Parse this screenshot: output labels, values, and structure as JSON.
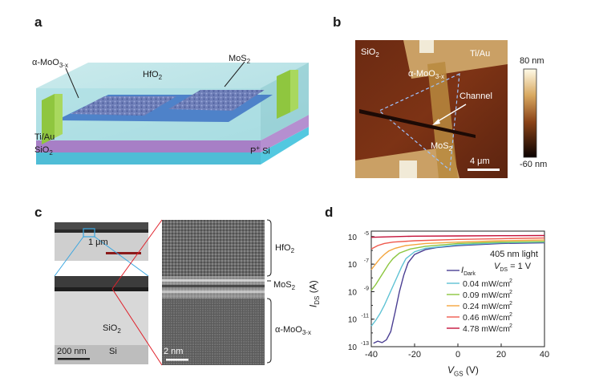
{
  "panels": {
    "a": {
      "letter": "a",
      "labels": {
        "moo3": "α-MoO",
        "moo3_sub": "3-x",
        "hfo2": "HfO",
        "hfo2_sub": "2",
        "mos2": "MoS",
        "mos2_sub": "2",
        "tiau": "Ti/Au",
        "sio2": "SiO",
        "sio2_sub": "2",
        "psi_p": "P",
        "psi_sup": "+",
        "psi_si": " Si"
      }
    },
    "b": {
      "letter": "b",
      "labels": {
        "sio2": "SiO",
        "sio2_sub": "2",
        "tiau": "Ti/Au",
        "moo3": "α-MoO",
        "moo3_sub": "3-x",
        "channel": "Channel",
        "mos2": "MoS",
        "mos2_sub": "2",
        "scale": "4 μm"
      },
      "colorbar": {
        "max": "80 nm",
        "min": "-60 nm"
      }
    },
    "c": {
      "letter": "c",
      "labels": {
        "scale_1um": "1 μm",
        "sio2": "SiO",
        "sio2_sub": "2",
        "si": "Si",
        "scale_200nm": "200 nm",
        "scale_2nm": "2 nm",
        "hfo2": "HfO",
        "hfo2_sub": "2",
        "mos2": "MoS",
        "mos2_sub": "2",
        "moo3": "α-MoO",
        "moo3_sub": "3-x"
      }
    },
    "d": {
      "letter": "d",
      "annotation": "405 nm light",
      "vds_label": "V",
      "vds_sub": "DS",
      "vds_value": " = 1 V",
      "legend_dark_i": "I",
      "legend_dark_sub": "Dark"
    }
  },
  "chart_data": {
    "type": "line",
    "xlabel": "V",
    "xlabel_sub": "GS",
    "xlabel_unit": " (V)",
    "ylabel": "I",
    "ylabel_sub": "DS",
    "ylabel_unit": " (A)",
    "xlim": [
      -40,
      40
    ],
    "ylim_exp": [
      -13,
      -4.6
    ],
    "yscale": "log",
    "x_ticks": [
      "-40",
      "-20",
      "0",
      "20",
      "40"
    ],
    "y_ticks": [
      {
        "base": "10",
        "exp": "-5",
        "value": -5
      },
      {
        "base": "10",
        "exp": "-7",
        "value": -7
      },
      {
        "base": "10",
        "exp": "-9",
        "value": -9
      },
      {
        "base": "10",
        "exp": "-11",
        "value": -11
      },
      {
        "base": "10",
        "exp": "-13",
        "value": -13
      }
    ],
    "series": [
      {
        "name": "Dark",
        "color": "#4b3f93",
        "points": [
          [
            -39,
            -12.75
          ],
          [
            -37,
            -12.6
          ],
          [
            -35,
            -12.7
          ],
          [
            -33,
            -12.5
          ],
          [
            -31,
            -11.9
          ],
          [
            -29,
            -10.5
          ],
          [
            -27,
            -9.0
          ],
          [
            -25,
            -7.8
          ],
          [
            -23,
            -6.9
          ],
          [
            -20,
            -6.3
          ],
          [
            -15,
            -5.95
          ],
          [
            -10,
            -5.8
          ],
          [
            0,
            -5.65
          ],
          [
            20,
            -5.5
          ],
          [
            40,
            -5.45
          ]
        ]
      },
      {
        "name": "0.04 mW/cm2",
        "color": "#5ec2d4",
        "points": [
          [
            -40,
            -11.5
          ],
          [
            -38,
            -11.1
          ],
          [
            -36,
            -10.6
          ],
          [
            -34,
            -10.0
          ],
          [
            -32,
            -9.3
          ],
          [
            -30,
            -8.6
          ],
          [
            -28,
            -7.9
          ],
          [
            -26,
            -7.2
          ],
          [
            -24,
            -6.6
          ],
          [
            -20,
            -6.1
          ],
          [
            -15,
            -5.85
          ],
          [
            0,
            -5.6
          ],
          [
            20,
            -5.45
          ],
          [
            40,
            -5.4
          ]
        ]
      },
      {
        "name": "0.09 mW/cm2",
        "color": "#8cc63f",
        "points": [
          [
            -40,
            -8.9
          ],
          [
            -38,
            -8.5
          ],
          [
            -36,
            -8.0
          ],
          [
            -34,
            -7.5
          ],
          [
            -32,
            -7.0
          ],
          [
            -30,
            -6.6
          ],
          [
            -27,
            -6.2
          ],
          [
            -22,
            -5.9
          ],
          [
            -15,
            -5.7
          ],
          [
            0,
            -5.5
          ],
          [
            20,
            -5.4
          ],
          [
            40,
            -5.35
          ]
        ]
      },
      {
        "name": "0.24 mW/cm2",
        "color": "#f4a53d",
        "points": [
          [
            -40,
            -7.4
          ],
          [
            -38,
            -7.0
          ],
          [
            -36,
            -6.6
          ],
          [
            -34,
            -6.3
          ],
          [
            -32,
            -6.05
          ],
          [
            -29,
            -5.85
          ],
          [
            -24,
            -5.65
          ],
          [
            -15,
            -5.5
          ],
          [
            0,
            -5.4
          ],
          [
            20,
            -5.3
          ],
          [
            40,
            -5.25
          ]
        ]
      },
      {
        "name": "0.46 mW/cm2",
        "color": "#ef5a4e",
        "points": [
          [
            -40,
            -5.9
          ],
          [
            -37,
            -5.65
          ],
          [
            -34,
            -5.5
          ],
          [
            -30,
            -5.4
          ],
          [
            -20,
            -5.3
          ],
          [
            0,
            -5.2
          ],
          [
            20,
            -5.15
          ],
          [
            40,
            -5.1
          ]
        ]
      },
      {
        "name": "4.78 mW/cm2",
        "color": "#c4123a",
        "points": [
          [
            -40,
            -5.05
          ],
          [
            -30,
            -5.0
          ],
          [
            -20,
            -4.97
          ],
          [
            0,
            -4.95
          ],
          [
            20,
            -4.93
          ],
          [
            40,
            -4.92
          ]
        ]
      }
    ],
    "legend": [
      {
        "label": "0.04 mW/cm",
        "sup": "2",
        "color": "#5ec2d4"
      },
      {
        "label": "0.09 mW/cm",
        "sup": "2",
        "color": "#8cc63f"
      },
      {
        "label": "0.24 mW/cm",
        "sup": "2",
        "color": "#f4a53d"
      },
      {
        "label": "0.46 mW/cm",
        "sup": "2",
        "color": "#ef5a4e"
      },
      {
        "label": "4.78 mW/cm",
        "sup": "2",
        "color": "#c4123a"
      }
    ]
  }
}
